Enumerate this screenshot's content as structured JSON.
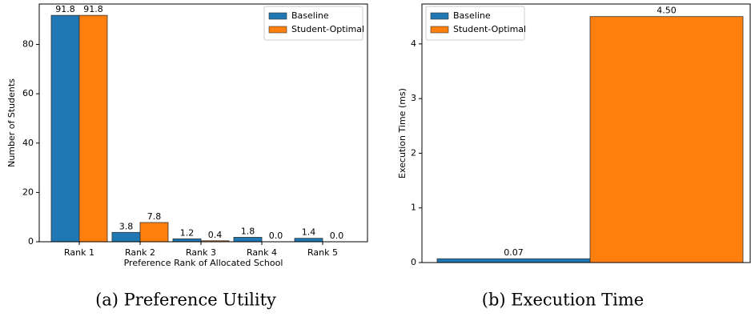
{
  "chart_data": [
    {
      "type": "bar",
      "caption": "(a) Preference Utility",
      "categories": [
        "Rank 1",
        "Rank 2",
        "Rank 3",
        "Rank 4",
        "Rank 5"
      ],
      "series": [
        {
          "name": "Baseline",
          "color": "#1f77b4",
          "values": [
            91.8,
            3.8,
            1.2,
            1.8,
            1.4
          ],
          "value_labels": [
            "91.8",
            "3.8",
            "1.2",
            "1.8",
            "1.4"
          ]
        },
        {
          "name": "Student-Optimal",
          "color": "#ff7f0e",
          "values": [
            91.8,
            7.8,
            0.4,
            0.0,
            0.0
          ],
          "value_labels": [
            "91.8",
            "7.8",
            "0.4",
            "0.0",
            "0.0"
          ]
        }
      ],
      "xlabel": "Preference Rank of Allocated School",
      "ylabel": "Number of Students",
      "ylim": [
        0,
        96.4
      ],
      "yticks": [
        0,
        20,
        40,
        60,
        80
      ],
      "grid": false,
      "legend": "upper right"
    },
    {
      "type": "bar",
      "caption": "(b) Execution Time",
      "categories": [
        null
      ],
      "series": [
        {
          "name": "Baseline",
          "color": "#1f77b4",
          "values": [
            0.07
          ],
          "value_labels": [
            "0.07"
          ]
        },
        {
          "name": "Student-Optimal",
          "color": "#ff7f0e",
          "values": [
            4.5
          ],
          "value_labels": [
            "4.50"
          ]
        }
      ],
      "ylabel": "Execution Time (ms)",
      "ylim": [
        0,
        4.73
      ],
      "yticks": [
        0,
        1,
        2,
        3,
        4
      ],
      "grid": false,
      "legend": "upper left"
    }
  ]
}
